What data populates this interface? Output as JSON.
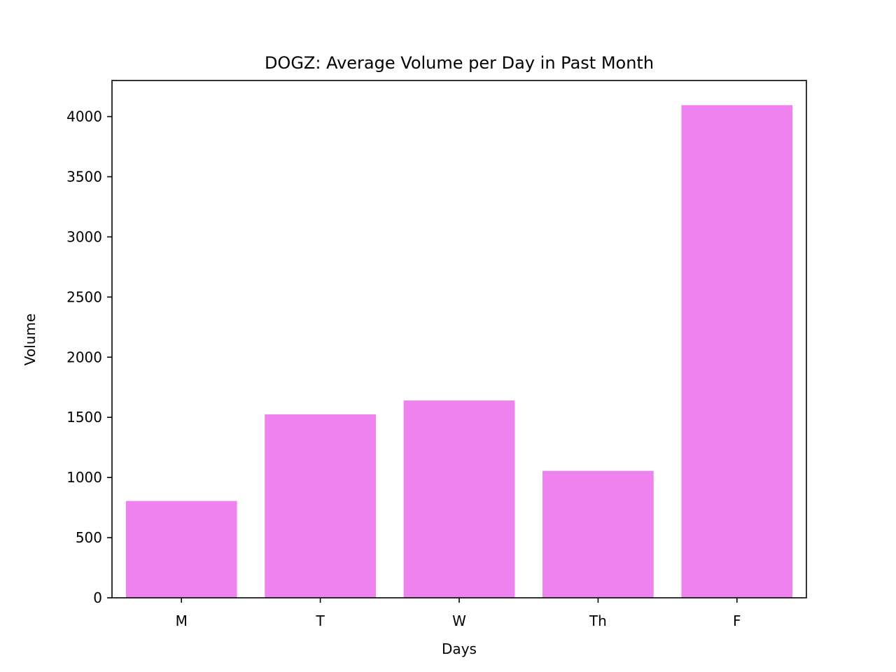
{
  "chart_data": {
    "type": "bar",
    "title": "DOGZ: Average Volume per Day in Past Month",
    "xlabel": "Days",
    "ylabel": "Volume",
    "categories": [
      "M",
      "T",
      "W",
      "Th",
      "F"
    ],
    "values": [
      805,
      1525,
      1640,
      1055,
      4095
    ],
    "ylim": [
      0,
      4300
    ],
    "yticks": [
      0,
      500,
      1000,
      1500,
      2000,
      2500,
      3000,
      3500,
      4000
    ],
    "grid": false,
    "bar_color": "#ee82ee"
  }
}
